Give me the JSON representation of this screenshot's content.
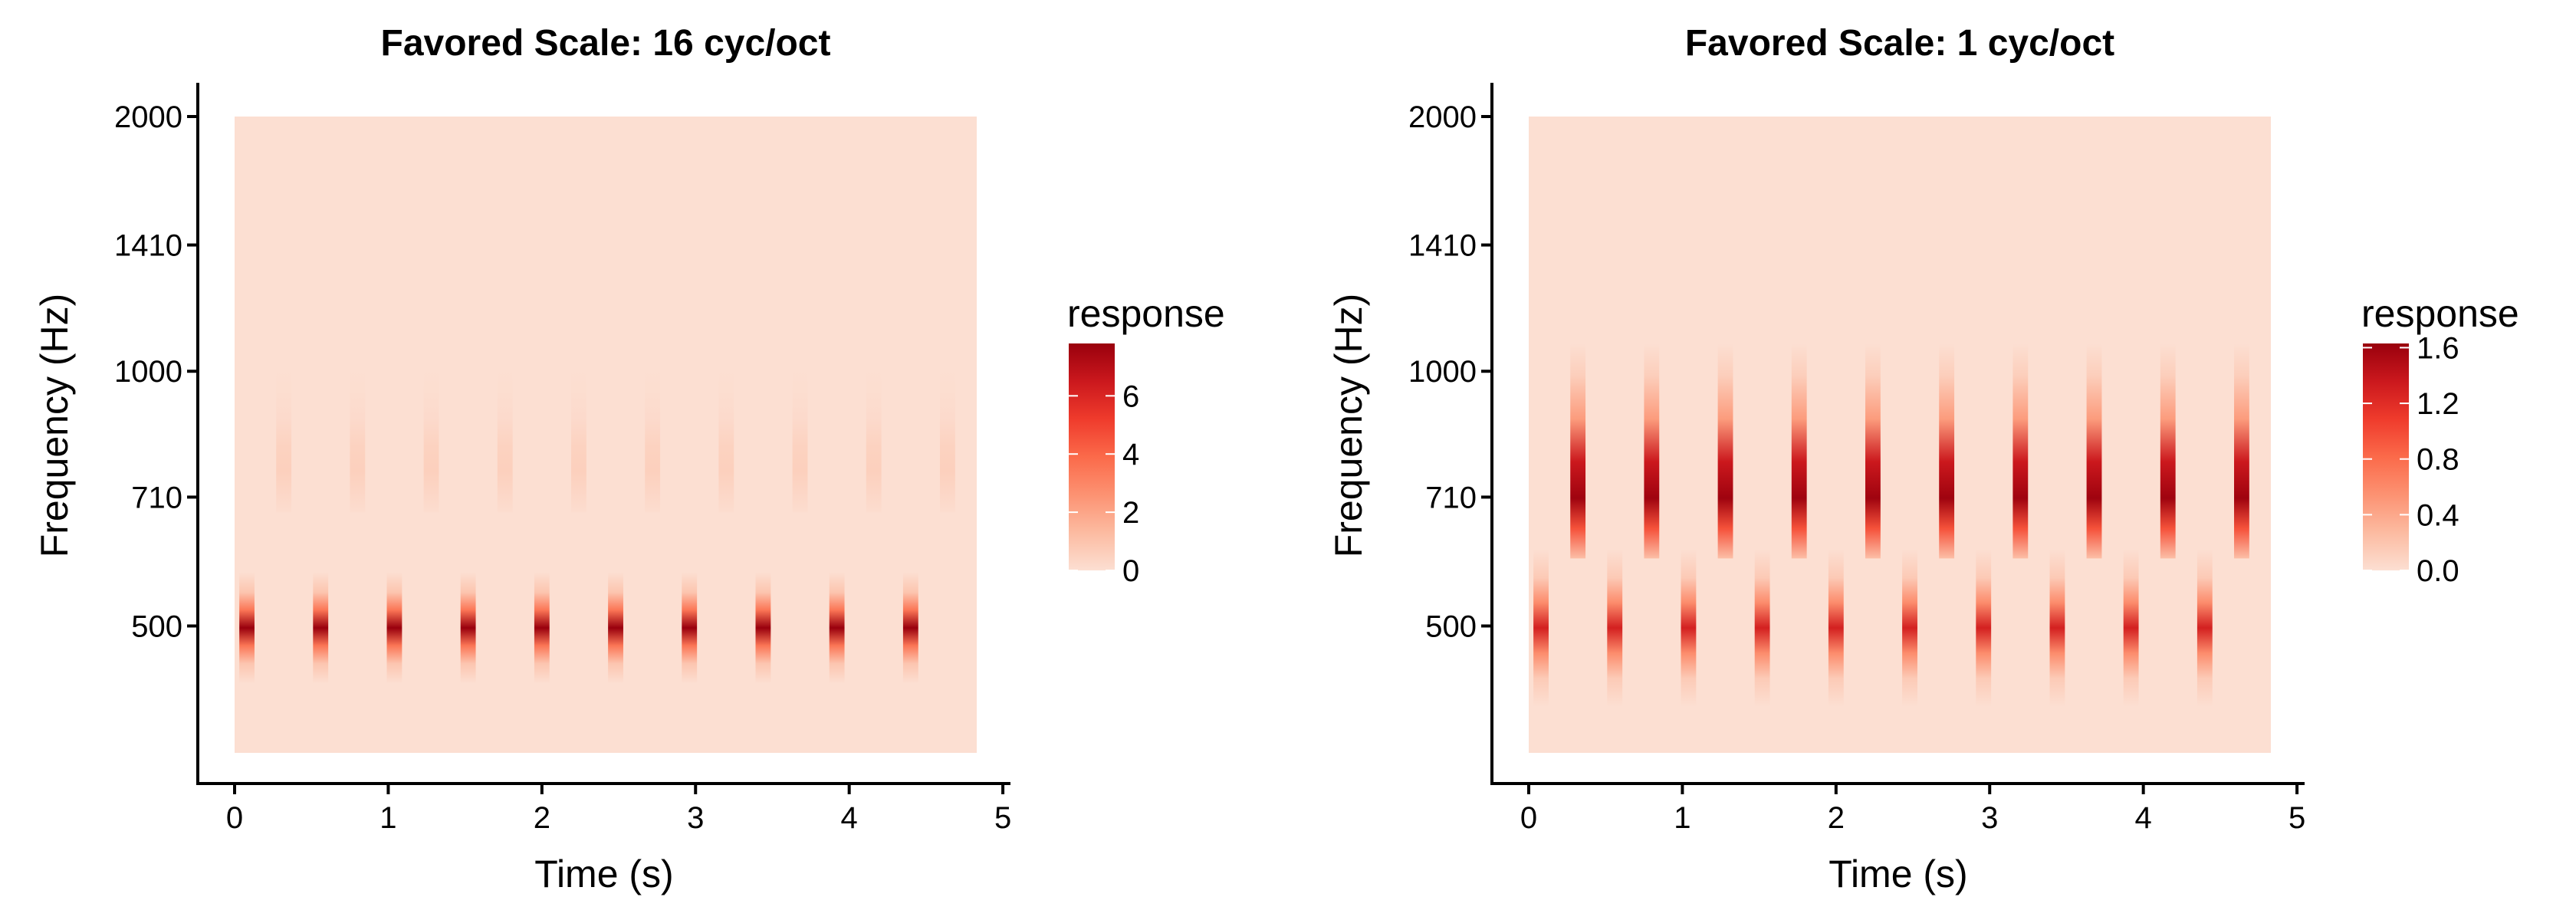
{
  "chart_data": [
    {
      "type": "heatmap",
      "title": "Favored Scale: 16 cyc/oct",
      "xlabel": "Time (s)",
      "ylabel": "Frequency (Hz)",
      "x_ticks": [
        "0",
        "1",
        "2",
        "3",
        "4",
        "5"
      ],
      "x_tick_values": [
        0,
        1,
        2,
        3,
        4,
        5
      ],
      "y_ticks": [
        "500",
        "710",
        "1000",
        "1410",
        "2000"
      ],
      "y_tick_values": [
        500,
        710,
        1000,
        1410,
        2000
      ],
      "xlim": [
        0,
        4.83
      ],
      "ylim": [
        354,
        2000
      ],
      "y_scale": "log",
      "colorscale": [
        "#fcdfd2",
        "#fcbba1",
        "#fc9272",
        "#fb6a4a",
        "#ef3b2c",
        "#cb181d",
        "#99000d"
      ],
      "legend": {
        "title": "response",
        "ticks": [
          "0",
          "2",
          "4",
          "6"
        ],
        "tick_values": [
          0,
          2,
          4,
          6
        ],
        "range": [
          0,
          7.8
        ]
      },
      "bursts": [
        {
          "row": "low",
          "frequency": 500,
          "times": [
            0.08,
            0.56,
            1.04,
            1.52,
            2.0,
            2.48,
            2.96,
            3.44,
            3.92,
            4.4
          ],
          "peak": 7.8
        },
        {
          "row": "high",
          "frequency": 710,
          "times": [
            0.32,
            0.8,
            1.28,
            1.76,
            2.24,
            2.72,
            3.2,
            3.68,
            4.16,
            4.64
          ],
          "peak": 0.55
        }
      ]
    },
    {
      "type": "heatmap",
      "title": "Favored Scale: 1 cyc/oct",
      "xlabel": "Time (s)",
      "ylabel": "Frequency (Hz)",
      "x_ticks": [
        "0",
        "1",
        "2",
        "3",
        "4",
        "5"
      ],
      "x_tick_values": [
        0,
        1,
        2,
        3,
        4,
        5
      ],
      "y_ticks": [
        "500",
        "710",
        "1000",
        "1410",
        "2000"
      ],
      "y_tick_values": [
        500,
        710,
        1000,
        1410,
        2000
      ],
      "xlim": [
        0,
        4.83
      ],
      "ylim": [
        354,
        2000
      ],
      "y_scale": "log",
      "colorscale": [
        "#fcdfd2",
        "#fcbba1",
        "#fc9272",
        "#fb6a4a",
        "#ef3b2c",
        "#cb181d",
        "#99000d"
      ],
      "legend": {
        "title": "response",
        "ticks": [
          "0.0",
          "0.4",
          "0.8",
          "1.2",
          "1.6"
        ],
        "tick_values": [
          0,
          0.4,
          0.8,
          1.2,
          1.6
        ],
        "range": [
          0,
          1.63
        ]
      },
      "bursts": [
        {
          "row": "low",
          "frequency": 500,
          "times": [
            0.08,
            0.56,
            1.04,
            1.52,
            2.0,
            2.48,
            2.96,
            3.44,
            3.92,
            4.4
          ],
          "peak": 1.3
        },
        {
          "row": "high",
          "frequency": 710,
          "times": [
            0.32,
            0.8,
            1.28,
            1.76,
            2.24,
            2.72,
            3.2,
            3.68,
            4.16,
            4.64
          ],
          "peak": 1.6
        }
      ]
    }
  ]
}
